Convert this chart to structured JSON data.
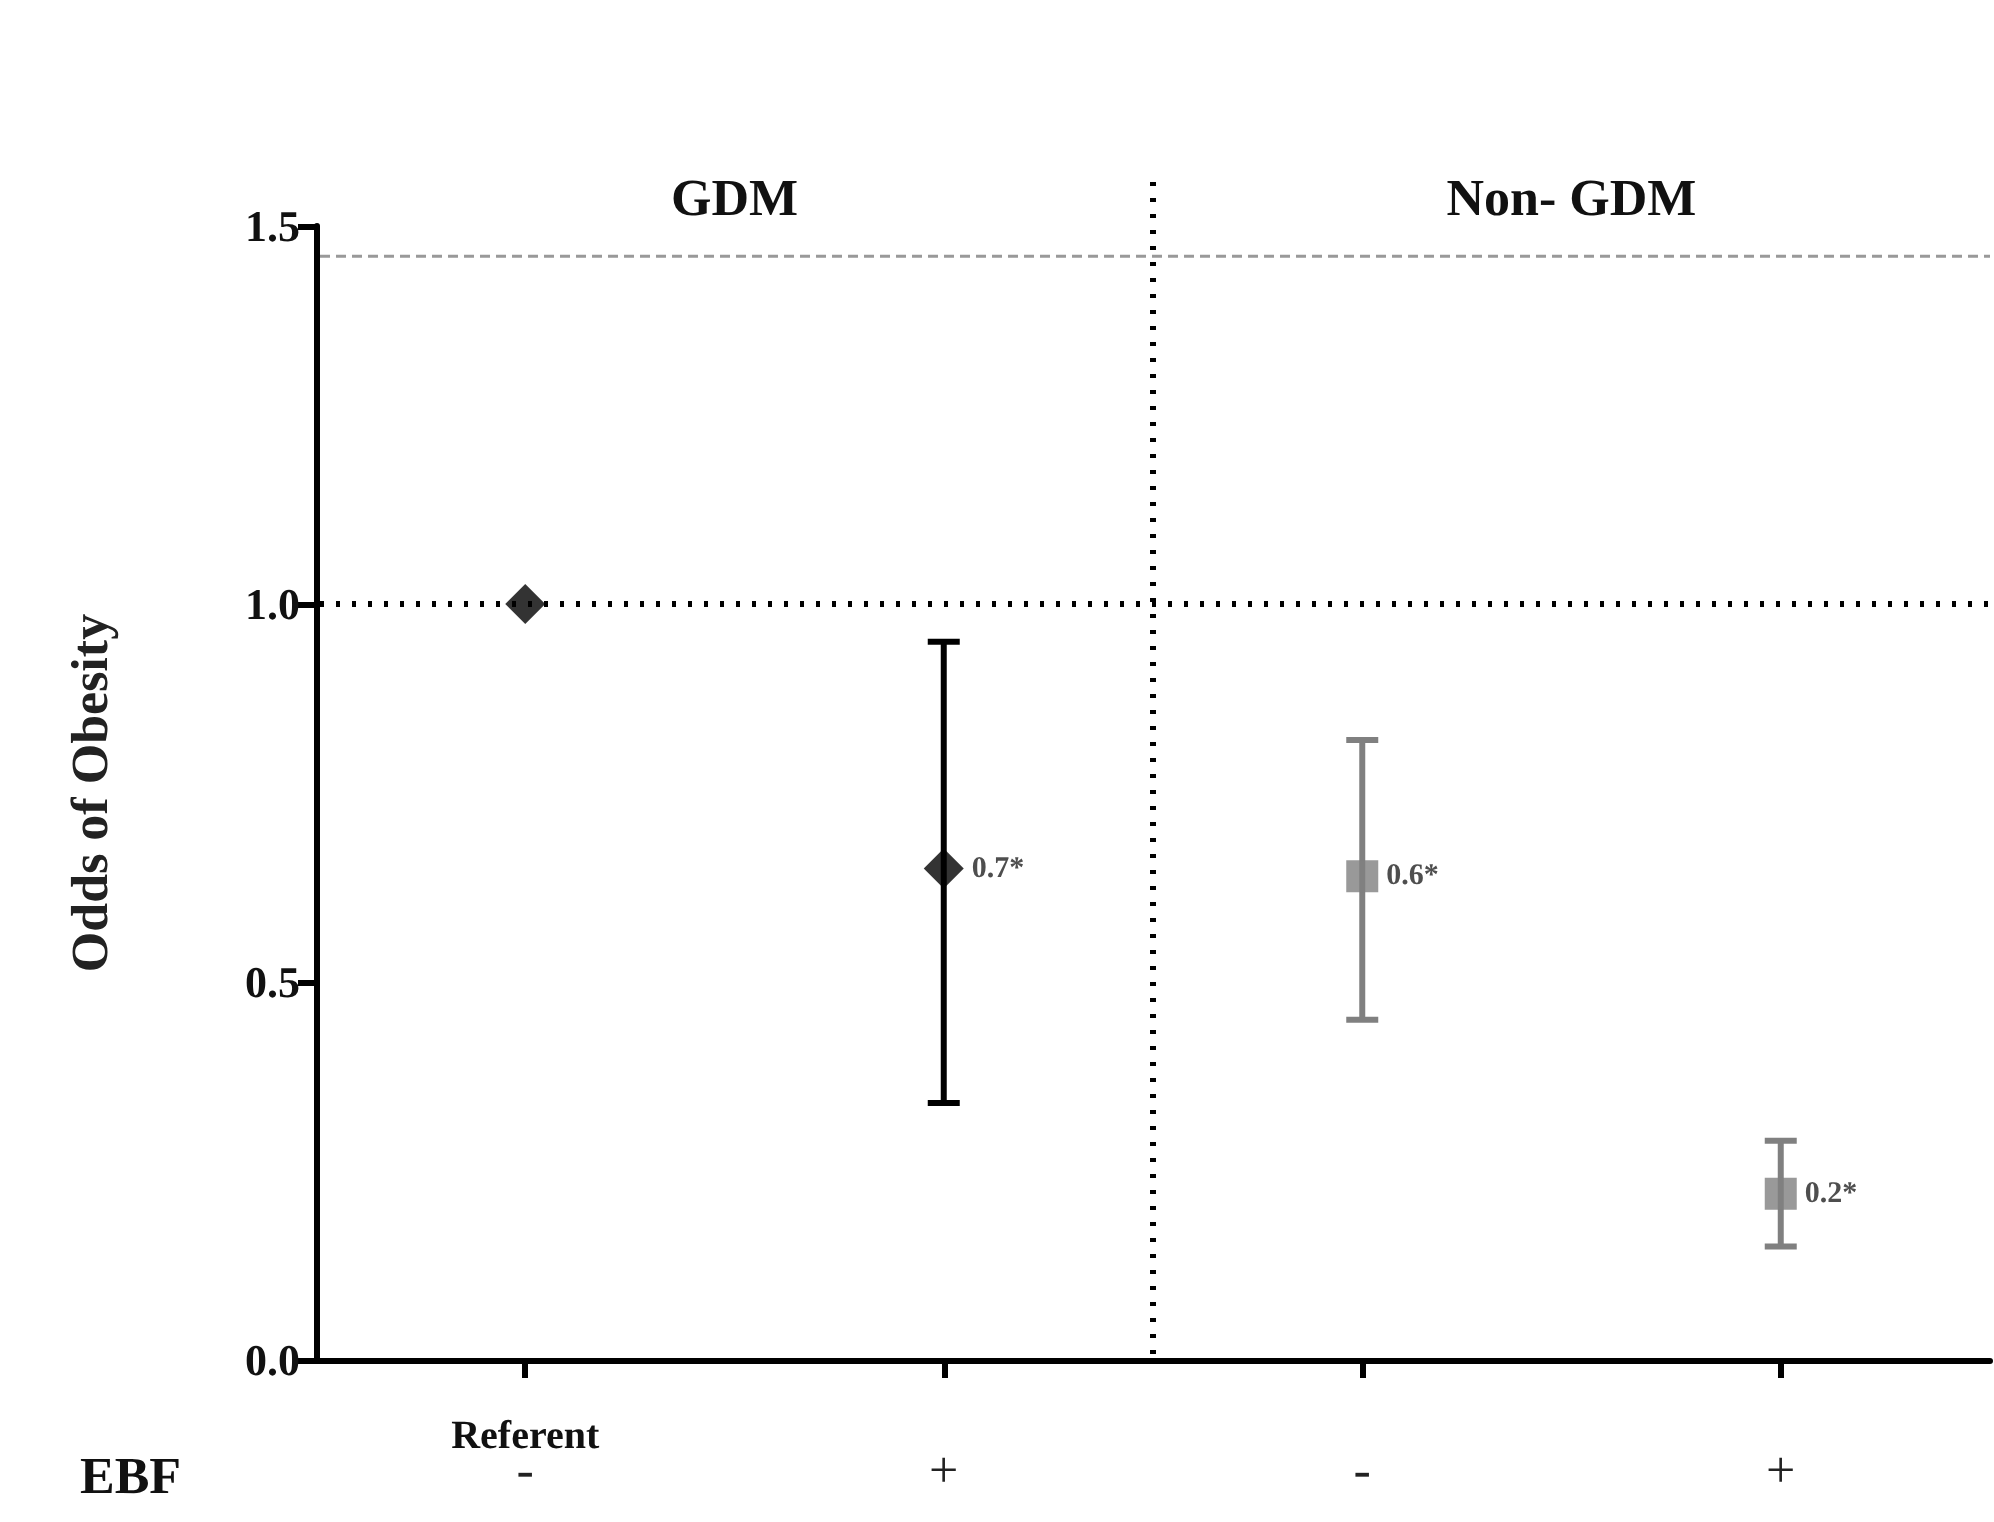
{
  "chart_data": {
    "type": "scatter",
    "ylabel": "Odds of Obesity",
    "xlabel": "EBF",
    "categories": [
      "-",
      "+",
      "-",
      "+"
    ],
    "ylim": [
      0,
      1.5
    ],
    "yticks": [
      {
        "value": 0,
        "label": "0.0"
      },
      0.5,
      {
        "value": 1,
        "label": "1.0"
      },
      1.5
    ],
    "series": [
      {
        "color": "#000000",
        "marker": "diamond",
        "values": [
          1.0,
          0.65,
          null,
          null
        ],
        "errors": [
          null,
          [
            0.34,
            0.95
          ],
          null,
          null
        ],
        "value_labels": [
          null,
          "0.7*",
          null,
          null
        ]
      },
      {
        "color": "#808080",
        "marker": "square",
        "values": [
          null,
          null,
          0.64,
          0.22
        ],
        "errors": [
          null,
          null,
          [
            0.45,
            0.82
          ],
          [
            0.15,
            0.29
          ]
        ],
        "value_labels": [
          null,
          null,
          "0.6*",
          "0.2*"
        ]
      }
    ],
    "ref_lines": [
      {
        "axis": "y",
        "value": 1,
        "line_style": "dotted",
        "color": "#000000"
      },
      {
        "axis": "y",
        "value": 1.46,
        "line_style": "dashed",
        "color": "#999999"
      }
    ],
    "annotations": [
      "GDM",
      "Non- GDM",
      "Referent"
    ]
  }
}
